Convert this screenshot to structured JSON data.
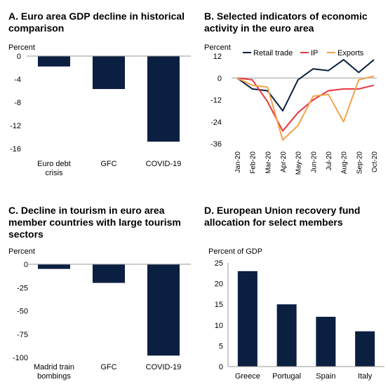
{
  "colors": {
    "navy": "#0b1f40",
    "red": "#e8373f",
    "orange": "#f5a24a",
    "axis": "#9a9a9a"
  },
  "chart_data": [
    {
      "id": "A",
      "type": "bar",
      "title_line1": "A. Euro area GDP decline in historical",
      "title_line2": "comparison",
      "ylabel": "Percent",
      "categories": [
        [
          "Euro debt",
          "crisis"
        ],
        [
          "GFC"
        ],
        [
          "COVID-19"
        ]
      ],
      "values": [
        -1.8,
        -5.7,
        -14.8
      ],
      "ylim": [
        -16,
        0
      ],
      "yticks": [
        0,
        -4,
        -8,
        -12,
        -16
      ]
    },
    {
      "id": "B",
      "type": "line",
      "title_line1": "B. Selected indicators of economic",
      "title_line2": "activity in the euro area",
      "ylabel": "Percent",
      "x": [
        "Jan-20",
        "Feb-20",
        "Mar-20",
        "Apr-20",
        "May-20",
        "Jun-20",
        "Jul-20",
        "Aug-20",
        "Sep-20",
        "Oct-20"
      ],
      "ylim": [
        -36,
        12
      ],
      "yticks": [
        12,
        0,
        -12,
        -24,
        -36
      ],
      "series": [
        {
          "name": "Retail trade",
          "color_key": "navy",
          "values": [
            0,
            -6,
            -7,
            -18,
            -1,
            5,
            4,
            10,
            3,
            10
          ]
        },
        {
          "name": "IP",
          "color_key": "red",
          "values": [
            0,
            -1,
            -13,
            -29,
            -19,
            -12,
            -7,
            -6,
            -6,
            -4
          ]
        },
        {
          "name": "Exports",
          "color_key": "orange",
          "values": [
            0,
            -4,
            -5,
            -34,
            -26,
            -10,
            -9,
            -24,
            -1,
            1
          ]
        }
      ]
    },
    {
      "id": "C",
      "type": "bar",
      "title_line1": "C. Decline in tourism in euro area",
      "title_line2": "member countries with large tourism",
      "title_line3": "sectors",
      "ylabel": "Percent",
      "categories": [
        [
          "Madrid train",
          "bombings"
        ],
        [
          "GFC"
        ],
        [
          "COVID-19"
        ]
      ],
      "values": [
        -5,
        -20,
        -98
      ],
      "ylim": [
        -100,
        0
      ],
      "yticks": [
        0,
        -25,
        -50,
        -75,
        -100
      ]
    },
    {
      "id": "D",
      "type": "bar",
      "title_line1": "D. European Union recovery fund",
      "title_line2": "allocation for select members",
      "ylabel": "Percent of GDP",
      "categories": [
        [
          "Greece"
        ],
        [
          "Portugal"
        ],
        [
          "Spain"
        ],
        [
          "Italy"
        ]
      ],
      "values": [
        23,
        15,
        12,
        8.5
      ],
      "ylim": [
        0,
        25
      ],
      "yticks": [
        25,
        20,
        15,
        10,
        5,
        0
      ]
    }
  ]
}
